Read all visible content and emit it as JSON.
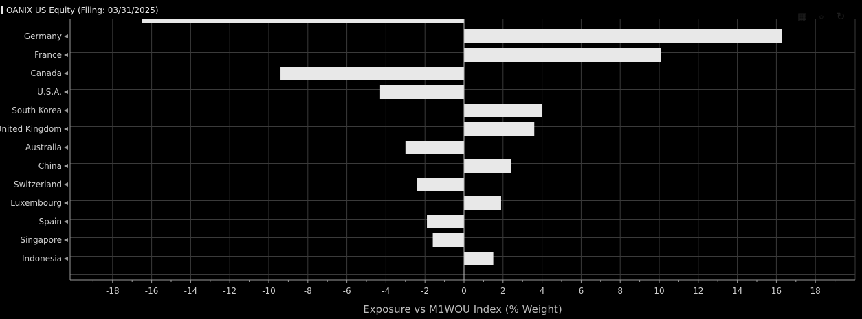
{
  "header": {
    "title": "OANIX US Equity (Filing: 03/31/2025)"
  },
  "toolbar": {
    "icons": [
      "grid-icon",
      "search-icon",
      "refresh-icon"
    ]
  },
  "colors": {
    "background": "#000000",
    "bar": "#e8e8e8",
    "grid": "#3a3a3a",
    "axis": "#9a9a9a"
  },
  "chart_data": {
    "type": "bar",
    "orientation": "horizontal",
    "categories": [
      "",
      "Germany",
      "France",
      "Canada",
      "U.S.A.",
      "South Korea",
      "United Kingdom",
      "Australia",
      "China",
      "Switzerland",
      "Luxembourg",
      "Spain",
      "Singapore",
      "Indonesia"
    ],
    "values": [
      -16.5,
      16.3,
      10.1,
      -9.4,
      -4.3,
      4.0,
      3.6,
      -3.0,
      2.4,
      -2.4,
      1.9,
      -1.9,
      -1.6,
      1.5
    ],
    "xlabel": "Exposure vs M1WOU Index (% Weight)",
    "xticks": [
      -18,
      -16,
      -14,
      -12,
      -10,
      -8,
      -6,
      -4,
      -2,
      0,
      2,
      4,
      6,
      8,
      10,
      12,
      14,
      16,
      18
    ],
    "xlim": [
      -20.2,
      20.2
    ],
    "grid": true
  }
}
